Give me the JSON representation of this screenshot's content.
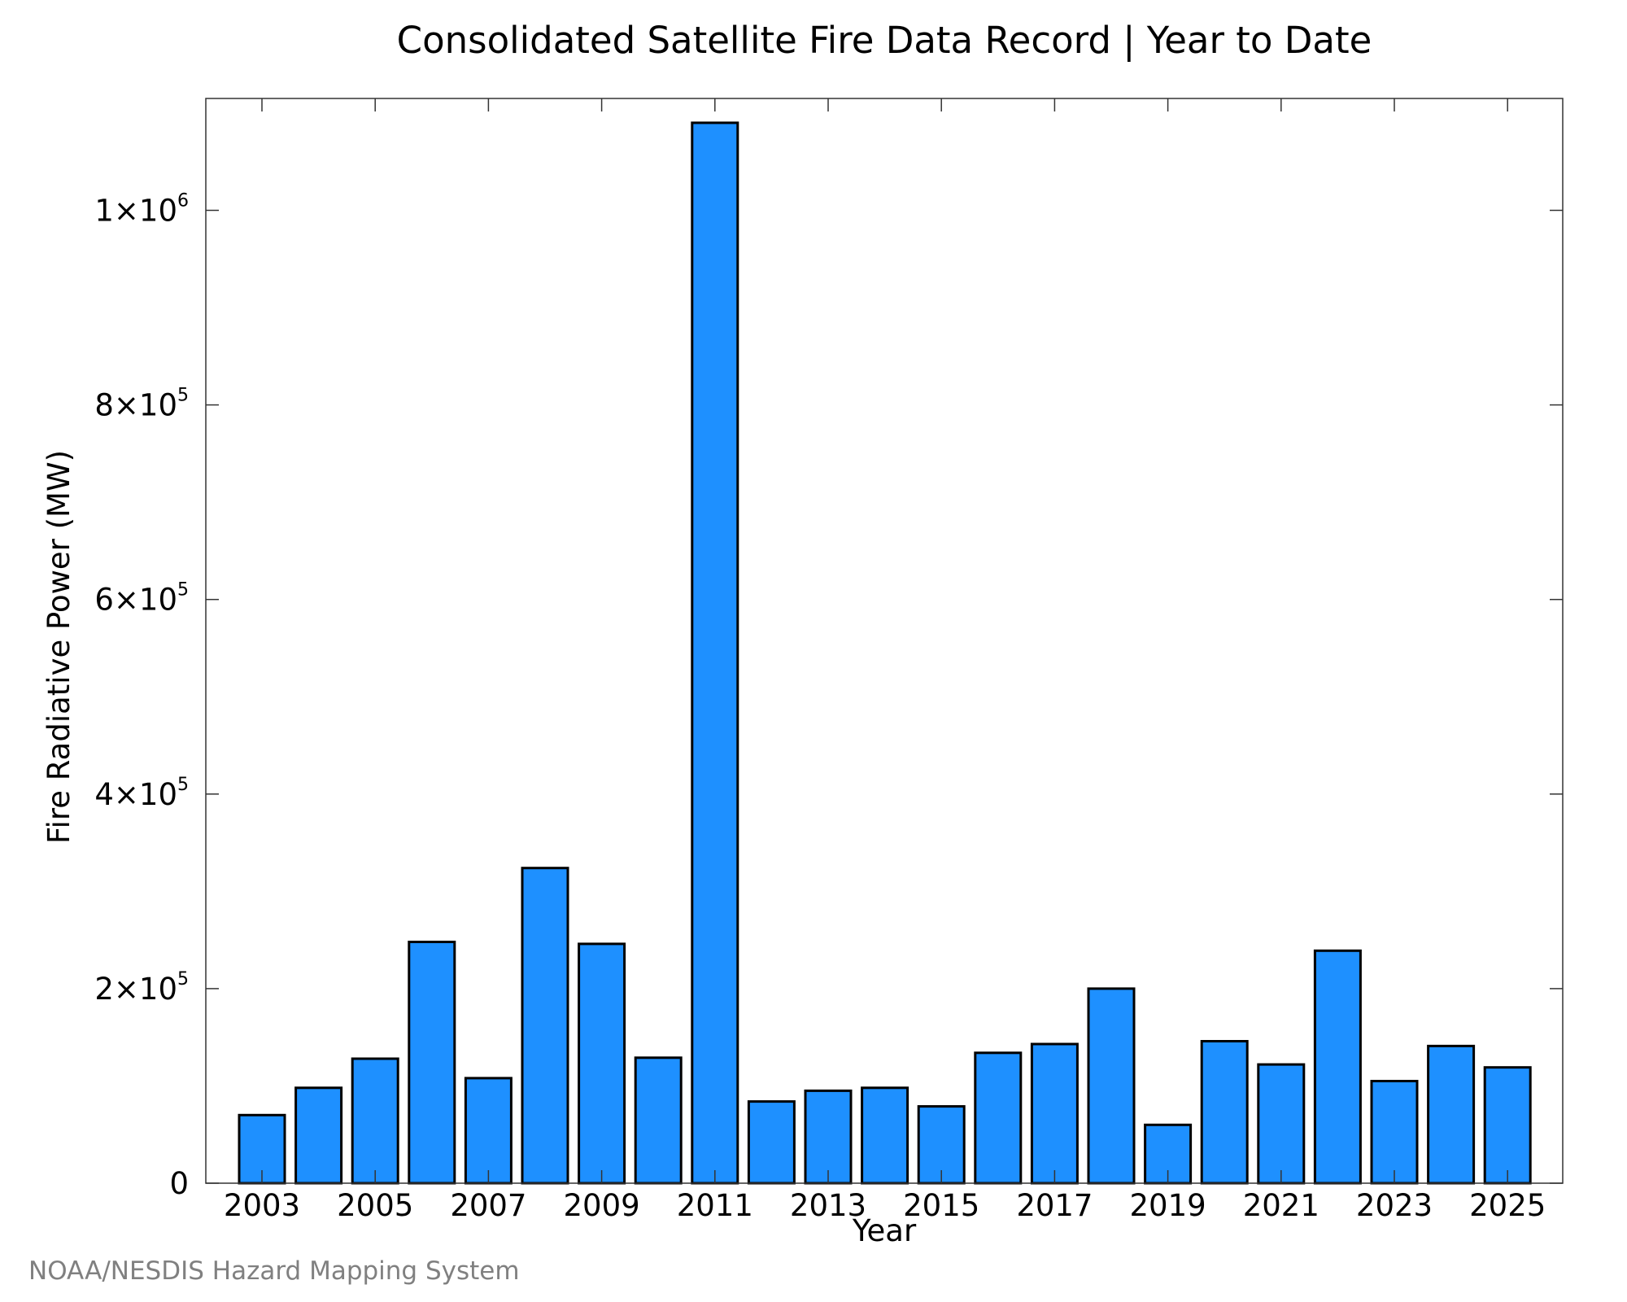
{
  "chart_data": {
    "type": "bar",
    "title": "Consolidated Satellite Fire Data Record | Year to Date",
    "xlabel": "Year",
    "ylabel": "Fire Radiative Power (MW)",
    "categories": [
      "2003",
      "2004",
      "2005",
      "2006",
      "2007",
      "2008",
      "2009",
      "2010",
      "2011",
      "2012",
      "2013",
      "2014",
      "2015",
      "2016",
      "2017",
      "2018",
      "2019",
      "2020",
      "2021",
      "2022",
      "2023",
      "2024",
      "2025"
    ],
    "values": [
      70000,
      98000,
      128000,
      248000,
      108000,
      324000,
      246000,
      129000,
      1090000,
      84000,
      95000,
      98000,
      79000,
      134000,
      143000,
      200000,
      60000,
      146000,
      122000,
      239000,
      105000,
      141000,
      119000
    ],
    "ylim": [
      0,
      1115000
    ],
    "yticks": [
      {
        "value": 0,
        "label": "0",
        "exp": ""
      },
      {
        "value": 200000,
        "label": "2×10",
        "exp": "5"
      },
      {
        "value": 400000,
        "label": "4×10",
        "exp": "5"
      },
      {
        "value": 600000,
        "label": "6×10",
        "exp": "5"
      },
      {
        "value": 800000,
        "label": "8×10",
        "exp": "5"
      },
      {
        "value": 1000000,
        "label": "1×10",
        "exp": "6"
      }
    ],
    "xtick_labels": [
      "2003",
      "2005",
      "2007",
      "2009",
      "2011",
      "2013",
      "2015",
      "2017",
      "2019",
      "2021",
      "2023",
      "2025"
    ],
    "bar_color": "#1e90ff",
    "bar_edge_color": "#000000",
    "grid": false,
    "legend": "none"
  },
  "credit": "NOAA/NESDIS Hazard Mapping System"
}
